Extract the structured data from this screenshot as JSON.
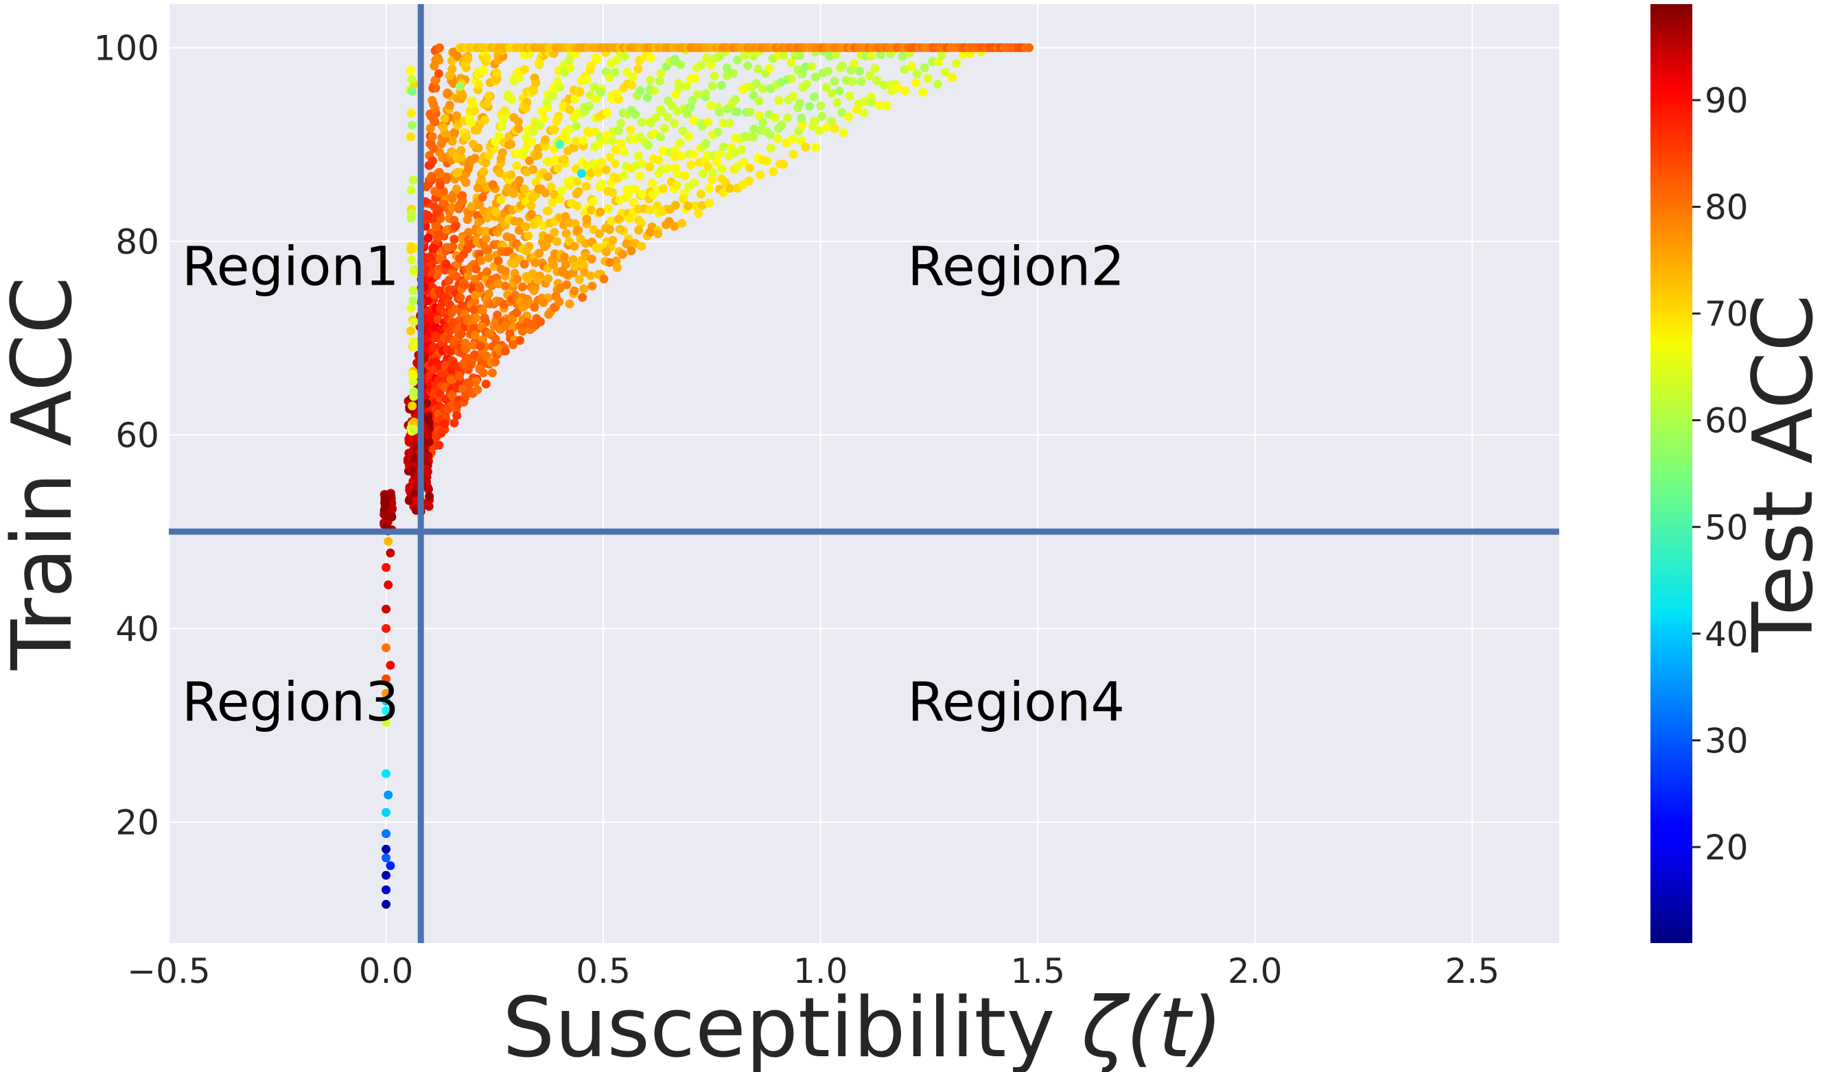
{
  "chart_data": {
    "type": "scatter",
    "xlabel": "Susceptibility ",
    "xlabel_symbol": "ζ(t)",
    "ylabel": "Train ACC",
    "colorbar_label": "Test ACC",
    "xlim": [
      -0.5,
      2.7
    ],
    "ylim": [
      7.5,
      104.5
    ],
    "colorbar_range": [
      11,
      99
    ],
    "x_ticks": [
      -0.5,
      0.0,
      0.5,
      1.0,
      1.5,
      2.0,
      2.5
    ],
    "x_tick_labels": [
      "−0.5",
      "0.0",
      "0.5",
      "1.0",
      "1.5",
      "2.0",
      "2.5"
    ],
    "y_ticks": [
      20,
      40,
      60,
      80,
      100
    ],
    "y_tick_labels": [
      "20",
      "40",
      "60",
      "80",
      "100"
    ],
    "colorbar_ticks": [
      20,
      30,
      40,
      50,
      60,
      70,
      80,
      90
    ],
    "colorbar_tick_labels": [
      "20",
      "30",
      "40",
      "50",
      "60",
      "70",
      "80",
      "90"
    ],
    "grid": true,
    "colormap": "jet",
    "threshold_lines": {
      "vertical_x": 0.08,
      "horizontal_y": 50,
      "color": "#4c72b0"
    },
    "region_labels": [
      {
        "text": "Region1",
        "x": -0.47,
        "y": 75.5
      },
      {
        "text": "Region2",
        "x": 1.2,
        "y": 75.5
      },
      {
        "text": "Region3",
        "x": -0.47,
        "y": 30.5
      },
      {
        "text": "Region4",
        "x": 1.2,
        "y": 30.5
      }
    ],
    "cluster_points": [
      {
        "x": 0.0,
        "y": 11.5,
        "c": 14
      },
      {
        "x": 0.0,
        "y": 13.0,
        "c": 18
      },
      {
        "x": 0.0,
        "y": 14.5,
        "c": 16
      },
      {
        "x": 0.01,
        "y": 15.5,
        "c": 25
      },
      {
        "x": 0.0,
        "y": 16.3,
        "c": 30
      },
      {
        "x": 0.0,
        "y": 17.2,
        "c": 14
      },
      {
        "x": 0.0,
        "y": 18.8,
        "c": 32
      },
      {
        "x": 0.0,
        "y": 21.0,
        "c": 40
      },
      {
        "x": 0.005,
        "y": 22.8,
        "c": 35
      },
      {
        "x": 0.0,
        "y": 25.0,
        "c": 42
      },
      {
        "x": 0.0,
        "y": 30.3,
        "c": 62
      },
      {
        "x": 0.0,
        "y": 31.5,
        "c": 45
      },
      {
        "x": 0.0,
        "y": 32.5,
        "c": 40
      },
      {
        "x": 0.0,
        "y": 33.3,
        "c": 75
      },
      {
        "x": 0.0,
        "y": 34.8,
        "c": 82
      },
      {
        "x": 0.01,
        "y": 36.2,
        "c": 88
      },
      {
        "x": 0.0,
        "y": 38.0,
        "c": 78
      },
      {
        "x": 0.0,
        "y": 40.0,
        "c": 86
      },
      {
        "x": 0.0,
        "y": 42.0,
        "c": 92
      },
      {
        "x": 0.005,
        "y": 44.5,
        "c": 90
      },
      {
        "x": 0.0,
        "y": 46.3,
        "c": 87
      },
      {
        "x": 0.01,
        "y": 47.8,
        "c": 93
      },
      {
        "x": 0.005,
        "y": 49.0,
        "c": 72
      },
      {
        "x": 0.17,
        "y": 96.0,
        "c": 58
      },
      {
        "x": 0.45,
        "y": 87.0,
        "c": 42
      },
      {
        "x": 0.4,
        "y": 90.0,
        "c": 50
      },
      {
        "x": 0.06,
        "y": 92.0,
        "c": 58
      },
      {
        "x": 0.06,
        "y": 95.5,
        "c": 55
      }
    ],
    "trajectories": [
      {
        "end_x": 0.19,
        "c0": 95,
        "c1": 72
      },
      {
        "end_x": 0.23,
        "c0": 94,
        "c1": 68
      },
      {
        "end_x": 0.27,
        "c0": 93,
        "c1": 72
      },
      {
        "end_x": 0.33,
        "c0": 92,
        "c1": 66
      },
      {
        "end_x": 0.38,
        "c0": 91,
        "c1": 70
      },
      {
        "end_x": 0.44,
        "c0": 90,
        "c1": 64
      },
      {
        "end_x": 0.5,
        "c0": 90,
        "c1": 68
      },
      {
        "end_x": 0.56,
        "c0": 89,
        "c1": 62
      },
      {
        "end_x": 0.62,
        "c0": 88,
        "c1": 66
      },
      {
        "end_x": 0.7,
        "c0": 88,
        "c1": 60
      },
      {
        "end_x": 0.78,
        "c0": 87,
        "c1": 63
      },
      {
        "end_x": 0.86,
        "c0": 87,
        "c1": 60
      },
      {
        "end_x": 0.95,
        "c0": 86,
        "c1": 62
      },
      {
        "end_x": 1.03,
        "c0": 86,
        "c1": 60
      },
      {
        "end_x": 1.12,
        "c0": 85,
        "c1": 61
      },
      {
        "end_x": 1.2,
        "c0": 85,
        "c1": 60
      },
      {
        "end_x": 1.3,
        "c0": 84,
        "c1": 62
      },
      {
        "end_x": 1.4,
        "c0": 84,
        "c1": 64
      },
      {
        "end_x": 0.16,
        "c0": 95,
        "c1": 74
      },
      {
        "end_x": 0.12,
        "c0": 96,
        "c1": 78
      }
    ],
    "top_band": {
      "y": 100,
      "x_start": 0.17,
      "x_end": 1.48,
      "c_start": 70,
      "c_end": 80
    }
  }
}
